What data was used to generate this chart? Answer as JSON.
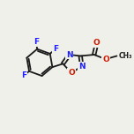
{
  "bg_color": "#f0f0eb",
  "bond_color": "#1a1a1a",
  "atom_colors": {
    "F": "#2020ff",
    "N": "#2020ff",
    "O": "#cc1a00",
    "C": "#1a1a1a"
  },
  "bond_width": 1.3,
  "figsize": [
    1.52,
    1.52
  ],
  "dpi": 100
}
